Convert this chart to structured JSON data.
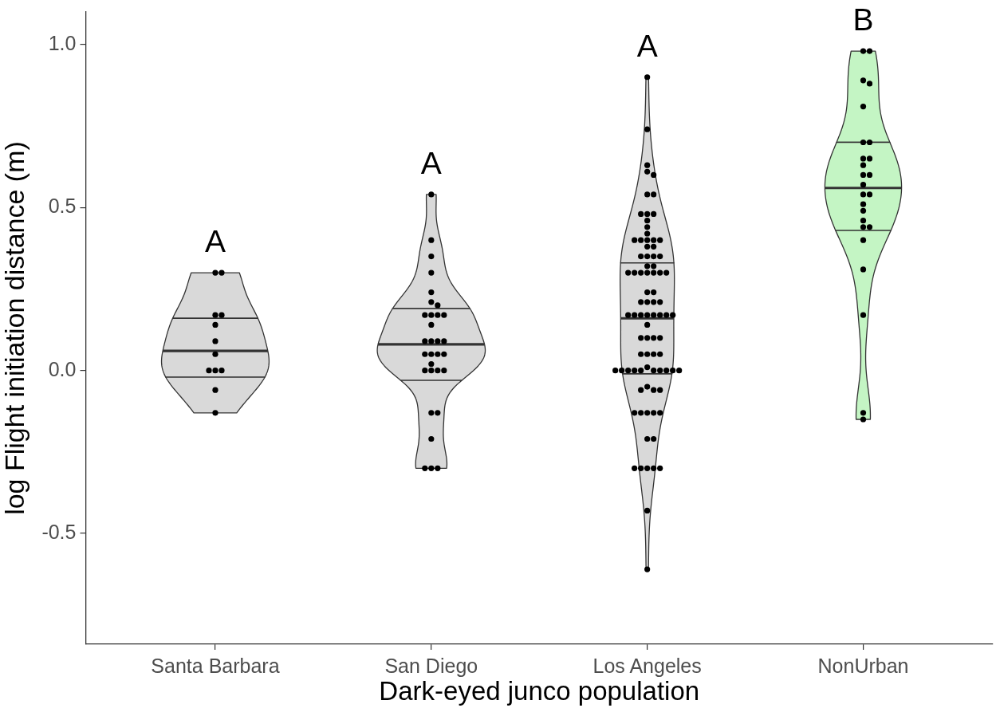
{
  "chart_data": {
    "type": "box",
    "xlabel": "Dark-eyed junco population",
    "ylabel": "log Flight initiation distance (m)",
    "categories": [
      "Santa Barbara",
      "San Diego",
      "Los Angeles",
      "NonUrban"
    ],
    "ylim": [
      -0.84,
      1.1
    ],
    "yticks": [
      -0.5,
      {
        "value": 0,
        "label": "0.0"
      },
      0.5,
      {
        "value": 1,
        "label": "1.0"
      }
    ],
    "series": [
      {
        "colors": [
          "#d9d9d9",
          "#d9d9d9",
          "#d9d9d9",
          "#c4f5c4"
        ],
        "boxes": [
          {
            "q1": -0.02,
            "median": 0.06,
            "q3": 0.16
          },
          {
            "q1": -0.03,
            "median": 0.08,
            "q3": 0.19
          },
          {
            "q1": -0.01,
            "median": 0.16,
            "q3": 0.33
          },
          {
            "q1": 0.43,
            "median": 0.56,
            "q3": 0.7
          }
        ]
      },
      {
        "type": "scatter",
        "color": "#000000",
        "marker": "circle",
        "x": [
          "Santa Barbara",
          "Santa Barbara",
          "Santa Barbara",
          "Santa Barbara",
          "Santa Barbara",
          "Santa Barbara",
          "Santa Barbara",
          "Santa Barbara",
          "Santa Barbara",
          "Santa Barbara",
          "Santa Barbara",
          "Santa Barbara",
          "San Diego",
          "San Diego",
          "San Diego",
          "San Diego",
          "San Diego",
          "San Diego",
          "San Diego",
          "San Diego",
          "San Diego",
          "San Diego",
          "San Diego",
          "San Diego",
          "San Diego",
          "San Diego",
          "San Diego",
          "San Diego",
          "San Diego",
          "San Diego",
          "San Diego",
          "San Diego",
          "San Diego",
          "San Diego",
          "San Diego",
          "San Diego",
          "San Diego",
          "San Diego",
          "San Diego",
          "San Diego",
          "San Diego",
          "San Diego",
          "San Diego",
          "Los Angeles",
          "Los Angeles",
          "Los Angeles",
          "Los Angeles",
          "Los Angeles",
          "Los Angeles",
          "Los Angeles",
          "Los Angeles",
          "Los Angeles",
          "Los Angeles",
          "Los Angeles",
          "Los Angeles",
          "Los Angeles",
          "Los Angeles",
          "Los Angeles",
          "Los Angeles",
          "Los Angeles",
          "Los Angeles",
          "Los Angeles",
          "Los Angeles",
          "Los Angeles",
          "Los Angeles",
          "Los Angeles",
          "Los Angeles",
          "Los Angeles",
          "Los Angeles",
          "Los Angeles",
          "Los Angeles",
          "Los Angeles",
          "Los Angeles",
          "Los Angeles",
          "Los Angeles",
          "Los Angeles",
          "Los Angeles",
          "Los Angeles",
          "Los Angeles",
          "Los Angeles",
          "Los Angeles",
          "Los Angeles",
          "Los Angeles",
          "Los Angeles",
          "Los Angeles",
          "Los Angeles",
          "Los Angeles",
          "Los Angeles",
          "Los Angeles",
          "Los Angeles",
          "Los Angeles",
          "Los Angeles",
          "Los Angeles",
          "Los Angeles",
          "Los Angeles",
          "Los Angeles",
          "Los Angeles",
          "Los Angeles",
          "Los Angeles",
          "Los Angeles",
          "Los Angeles",
          "Los Angeles",
          "Los Angeles",
          "Los Angeles",
          "Los Angeles",
          "Los Angeles",
          "Los Angeles",
          "Los Angeles",
          "Los Angeles",
          "Los Angeles",
          "Los Angeles",
          "Los Angeles",
          "Los Angeles",
          "Los Angeles",
          "Los Angeles",
          "Los Angeles",
          "Los Angeles",
          "Los Angeles",
          "Los Angeles",
          "Los Angeles",
          "Los Angeles",
          "Los Angeles",
          "Los Angeles",
          "Los Angeles",
          "Los Angeles",
          "Los Angeles",
          "Los Angeles",
          "Los Angeles",
          "NonUrban",
          "NonUrban",
          "NonUrban",
          "NonUrban",
          "NonUrban",
          "NonUrban",
          "NonUrban",
          "NonUrban",
          "NonUrban",
          "NonUrban",
          "NonUrban",
          "NonUrban",
          "NonUrban",
          "NonUrban",
          "NonUrban",
          "NonUrban",
          "NonUrban",
          "NonUrban",
          "NonUrban",
          "NonUrban",
          "NonUrban",
          "NonUrban",
          "NonUrban",
          "NonUrban",
          "NonUrban"
        ],
        "values": [
          0.3,
          0.3,
          0.17,
          0.17,
          0.14,
          0.09,
          0.05,
          0,
          0,
          0,
          -0.06,
          -0.13,
          0.54,
          0.4,
          0.35,
          0.3,
          0.24,
          0.21,
          0.2,
          0.17,
          0.17,
          0.17,
          0.17,
          0.14,
          0.09,
          0.09,
          0.09,
          0.09,
          0.05,
          0.05,
          0.05,
          0.05,
          0.02,
          0,
          0,
          0,
          0,
          -0.13,
          -0.13,
          -0.21,
          -0.3,
          -0.3,
          -0.3,
          0.9,
          0.74,
          0.63,
          0.61,
          0.6,
          0.54,
          0.54,
          0.48,
          0.48,
          0.48,
          0.46,
          0.44,
          0.42,
          0.4,
          0.4,
          0.4,
          0.4,
          0.4,
          0.38,
          0.38,
          0.35,
          0.35,
          0.35,
          0.35,
          0.32,
          0.32,
          0.3,
          0.3,
          0.3,
          0.3,
          0.3,
          0.3,
          0.3,
          0.24,
          0.24,
          0.21,
          0.21,
          0.21,
          0.21,
          0.17,
          0.17,
          0.17,
          0.17,
          0.17,
          0.17,
          0.17,
          0.17,
          0.14,
          0.1,
          0.1,
          0.1,
          0.1,
          0.05,
          0.05,
          0.05,
          0.05,
          0.01,
          0,
          0,
          0,
          0,
          0,
          0,
          0,
          0,
          0,
          0,
          -0.05,
          -0.06,
          -0.06,
          -0.06,
          -0.13,
          -0.13,
          -0.13,
          -0.13,
          -0.13,
          -0.21,
          -0.21,
          -0.3,
          -0.3,
          -0.3,
          -0.3,
          -0.3,
          -0.43,
          -0.61,
          0.98,
          0.98,
          0.89,
          0.88,
          0.81,
          0.7,
          0.7,
          0.65,
          0.65,
          0.63,
          0.6,
          0.6,
          0.57,
          0.54,
          0.54,
          0.51,
          0.49,
          0.46,
          0.44,
          0.44,
          0.4,
          0.31,
          0.17,
          -0.13,
          -0.15
        ]
      }
    ],
    "annotations": [
      "A",
      "A",
      "A",
      "B"
    ]
  }
}
